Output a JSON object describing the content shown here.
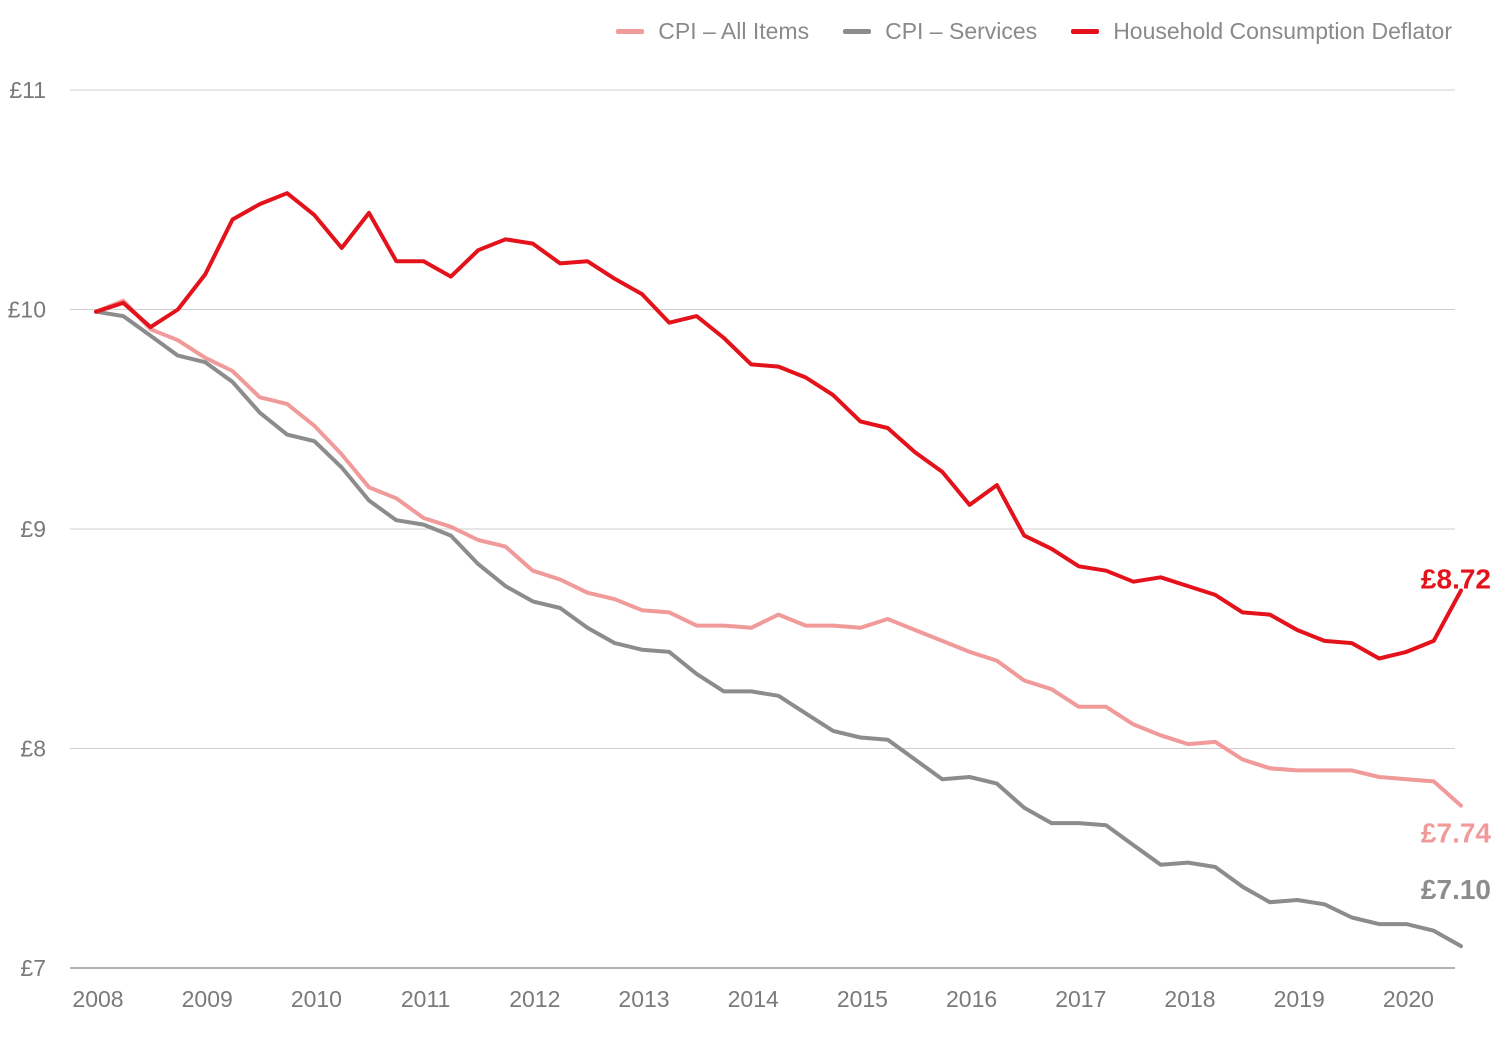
{
  "legend": {
    "items": [
      {
        "label": "CPI – All Items",
        "color": "#f19a9a"
      },
      {
        "label": "CPI – Services",
        "color": "#8c8c8c"
      },
      {
        "label": "Household Consumption Deflator",
        "color": "#e3121b"
      }
    ]
  },
  "chart_data": {
    "type": "line",
    "title": "",
    "xlabel": "",
    "ylabel": "",
    "ylim": [
      7,
      11
    ],
    "xlim": [
      2007.8,
      2020.5
    ],
    "yticks": [
      {
        "value": 7,
        "label": "£7"
      },
      {
        "value": 8,
        "label": "£8"
      },
      {
        "value": 9,
        "label": "£9"
      },
      {
        "value": 10,
        "label": "£10"
      },
      {
        "value": 11,
        "label": "£11"
      }
    ],
    "xticks": [
      {
        "value": 2008,
        "label": "2008"
      },
      {
        "value": 2009,
        "label": "2009"
      },
      {
        "value": 2010,
        "label": "2010"
      },
      {
        "value": 2011,
        "label": "2011"
      },
      {
        "value": 2012,
        "label": "2012"
      },
      {
        "value": 2013,
        "label": "2013"
      },
      {
        "value": 2014,
        "label": "2014"
      },
      {
        "value": 2015,
        "label": "2015"
      },
      {
        "value": 2016,
        "label": "2016"
      },
      {
        "value": 2017,
        "label": "2017"
      },
      {
        "value": 2018,
        "label": "2018"
      },
      {
        "value": 2019,
        "label": "2019"
      },
      {
        "value": 2020,
        "label": "2020"
      }
    ],
    "grid": "horizontal",
    "legend_position": "top-right",
    "series": [
      {
        "name": "CPI – All Items",
        "color": "#f19a9a",
        "end_label": "£7.74",
        "points": [
          [
            2008.0,
            9.99
          ],
          [
            2008.25,
            10.04
          ],
          [
            2008.5,
            9.91
          ],
          [
            2008.75,
            9.86
          ],
          [
            2009.0,
            9.78
          ],
          [
            2009.25,
            9.72
          ],
          [
            2009.5,
            9.6
          ],
          [
            2009.75,
            9.57
          ],
          [
            2010.0,
            9.47
          ],
          [
            2010.25,
            9.34
          ],
          [
            2010.5,
            9.19
          ],
          [
            2010.75,
            9.14
          ],
          [
            2011.0,
            9.05
          ],
          [
            2011.25,
            9.01
          ],
          [
            2011.5,
            8.95
          ],
          [
            2011.75,
            8.92
          ],
          [
            2012.0,
            8.81
          ],
          [
            2012.25,
            8.77
          ],
          [
            2012.5,
            8.71
          ],
          [
            2012.75,
            8.68
          ],
          [
            2013.0,
            8.63
          ],
          [
            2013.25,
            8.62
          ],
          [
            2013.5,
            8.56
          ],
          [
            2013.75,
            8.56
          ],
          [
            2014.0,
            8.55
          ],
          [
            2014.25,
            8.61
          ],
          [
            2014.5,
            8.56
          ],
          [
            2014.75,
            8.56
          ],
          [
            2015.0,
            8.55
          ],
          [
            2015.25,
            8.59
          ],
          [
            2015.5,
            8.54
          ],
          [
            2015.75,
            8.49
          ],
          [
            2016.0,
            8.44
          ],
          [
            2016.25,
            8.4
          ],
          [
            2016.5,
            8.31
          ],
          [
            2016.75,
            8.27
          ],
          [
            2017.0,
            8.19
          ],
          [
            2017.25,
            8.19
          ],
          [
            2017.5,
            8.11
          ],
          [
            2017.75,
            8.06
          ],
          [
            2018.0,
            8.02
          ],
          [
            2018.25,
            8.03
          ],
          [
            2018.5,
            7.95
          ],
          [
            2018.75,
            7.91
          ],
          [
            2019.0,
            7.9
          ],
          [
            2019.25,
            7.9
          ],
          [
            2019.5,
            7.9
          ],
          [
            2019.75,
            7.87
          ],
          [
            2020.0,
            7.86
          ],
          [
            2020.25,
            7.85
          ],
          [
            2020.5,
            7.74
          ]
        ]
      },
      {
        "name": "CPI – Services",
        "color": "#8c8c8c",
        "end_label": "£7.10",
        "points": [
          [
            2008.0,
            9.99
          ],
          [
            2008.25,
            9.97
          ],
          [
            2008.5,
            9.88
          ],
          [
            2008.75,
            9.79
          ],
          [
            2009.0,
            9.76
          ],
          [
            2009.25,
            9.67
          ],
          [
            2009.5,
            9.53
          ],
          [
            2009.75,
            9.43
          ],
          [
            2010.0,
            9.4
          ],
          [
            2010.25,
            9.28
          ],
          [
            2010.5,
            9.13
          ],
          [
            2010.75,
            9.04
          ],
          [
            2011.0,
            9.02
          ],
          [
            2011.25,
            8.97
          ],
          [
            2011.5,
            8.84
          ],
          [
            2011.75,
            8.74
          ],
          [
            2012.0,
            8.67
          ],
          [
            2012.25,
            8.64
          ],
          [
            2012.5,
            8.55
          ],
          [
            2012.75,
            8.48
          ],
          [
            2013.0,
            8.45
          ],
          [
            2013.25,
            8.44
          ],
          [
            2013.5,
            8.34
          ],
          [
            2013.75,
            8.26
          ],
          [
            2014.0,
            8.26
          ],
          [
            2014.25,
            8.24
          ],
          [
            2014.5,
            8.16
          ],
          [
            2014.75,
            8.08
          ],
          [
            2015.0,
            8.05
          ],
          [
            2015.25,
            8.04
          ],
          [
            2015.5,
            7.95
          ],
          [
            2015.75,
            7.86
          ],
          [
            2016.0,
            7.87
          ],
          [
            2016.25,
            7.84
          ],
          [
            2016.5,
            7.73
          ],
          [
            2016.75,
            7.66
          ],
          [
            2017.0,
            7.66
          ],
          [
            2017.25,
            7.65
          ],
          [
            2017.5,
            7.56
          ],
          [
            2017.75,
            7.47
          ],
          [
            2018.0,
            7.48
          ],
          [
            2018.25,
            7.46
          ],
          [
            2018.5,
            7.37
          ],
          [
            2018.75,
            7.3
          ],
          [
            2019.0,
            7.31
          ],
          [
            2019.25,
            7.29
          ],
          [
            2019.5,
            7.23
          ],
          [
            2019.75,
            7.2
          ],
          [
            2020.0,
            7.2
          ],
          [
            2020.25,
            7.17
          ],
          [
            2020.5,
            7.1
          ]
        ]
      },
      {
        "name": "Household Consumption Deflator",
        "color": "#e3121b",
        "end_label": "£8.72",
        "points": [
          [
            2008.0,
            9.99
          ],
          [
            2008.25,
            10.03
          ],
          [
            2008.5,
            9.92
          ],
          [
            2008.75,
            10.0
          ],
          [
            2009.0,
            10.16
          ],
          [
            2009.25,
            10.41
          ],
          [
            2009.5,
            10.48
          ],
          [
            2009.75,
            10.53
          ],
          [
            2010.0,
            10.43
          ],
          [
            2010.25,
            10.28
          ],
          [
            2010.5,
            10.44
          ],
          [
            2010.75,
            10.22
          ],
          [
            2011.0,
            10.22
          ],
          [
            2011.25,
            10.15
          ],
          [
            2011.5,
            10.27
          ],
          [
            2011.75,
            10.32
          ],
          [
            2012.0,
            10.3
          ],
          [
            2012.25,
            10.21
          ],
          [
            2012.5,
            10.22
          ],
          [
            2012.75,
            10.14
          ],
          [
            2013.0,
            10.07
          ],
          [
            2013.25,
            9.94
          ],
          [
            2013.5,
            9.97
          ],
          [
            2013.75,
            9.87
          ],
          [
            2014.0,
            9.75
          ],
          [
            2014.25,
            9.74
          ],
          [
            2014.5,
            9.69
          ],
          [
            2014.75,
            9.61
          ],
          [
            2015.0,
            9.49
          ],
          [
            2015.25,
            9.46
          ],
          [
            2015.5,
            9.35
          ],
          [
            2015.75,
            9.26
          ],
          [
            2016.0,
            9.11
          ],
          [
            2016.25,
            9.2
          ],
          [
            2016.5,
            8.97
          ],
          [
            2016.75,
            8.91
          ],
          [
            2017.0,
            8.83
          ],
          [
            2017.25,
            8.81
          ],
          [
            2017.5,
            8.76
          ],
          [
            2017.75,
            8.78
          ],
          [
            2018.0,
            8.74
          ],
          [
            2018.25,
            8.7
          ],
          [
            2018.5,
            8.62
          ],
          [
            2018.75,
            8.61
          ],
          [
            2019.0,
            8.54
          ],
          [
            2019.25,
            8.49
          ],
          [
            2019.5,
            8.48
          ],
          [
            2019.75,
            8.41
          ],
          [
            2020.0,
            8.44
          ],
          [
            2020.25,
            8.49
          ],
          [
            2020.5,
            8.72
          ]
        ]
      }
    ]
  }
}
